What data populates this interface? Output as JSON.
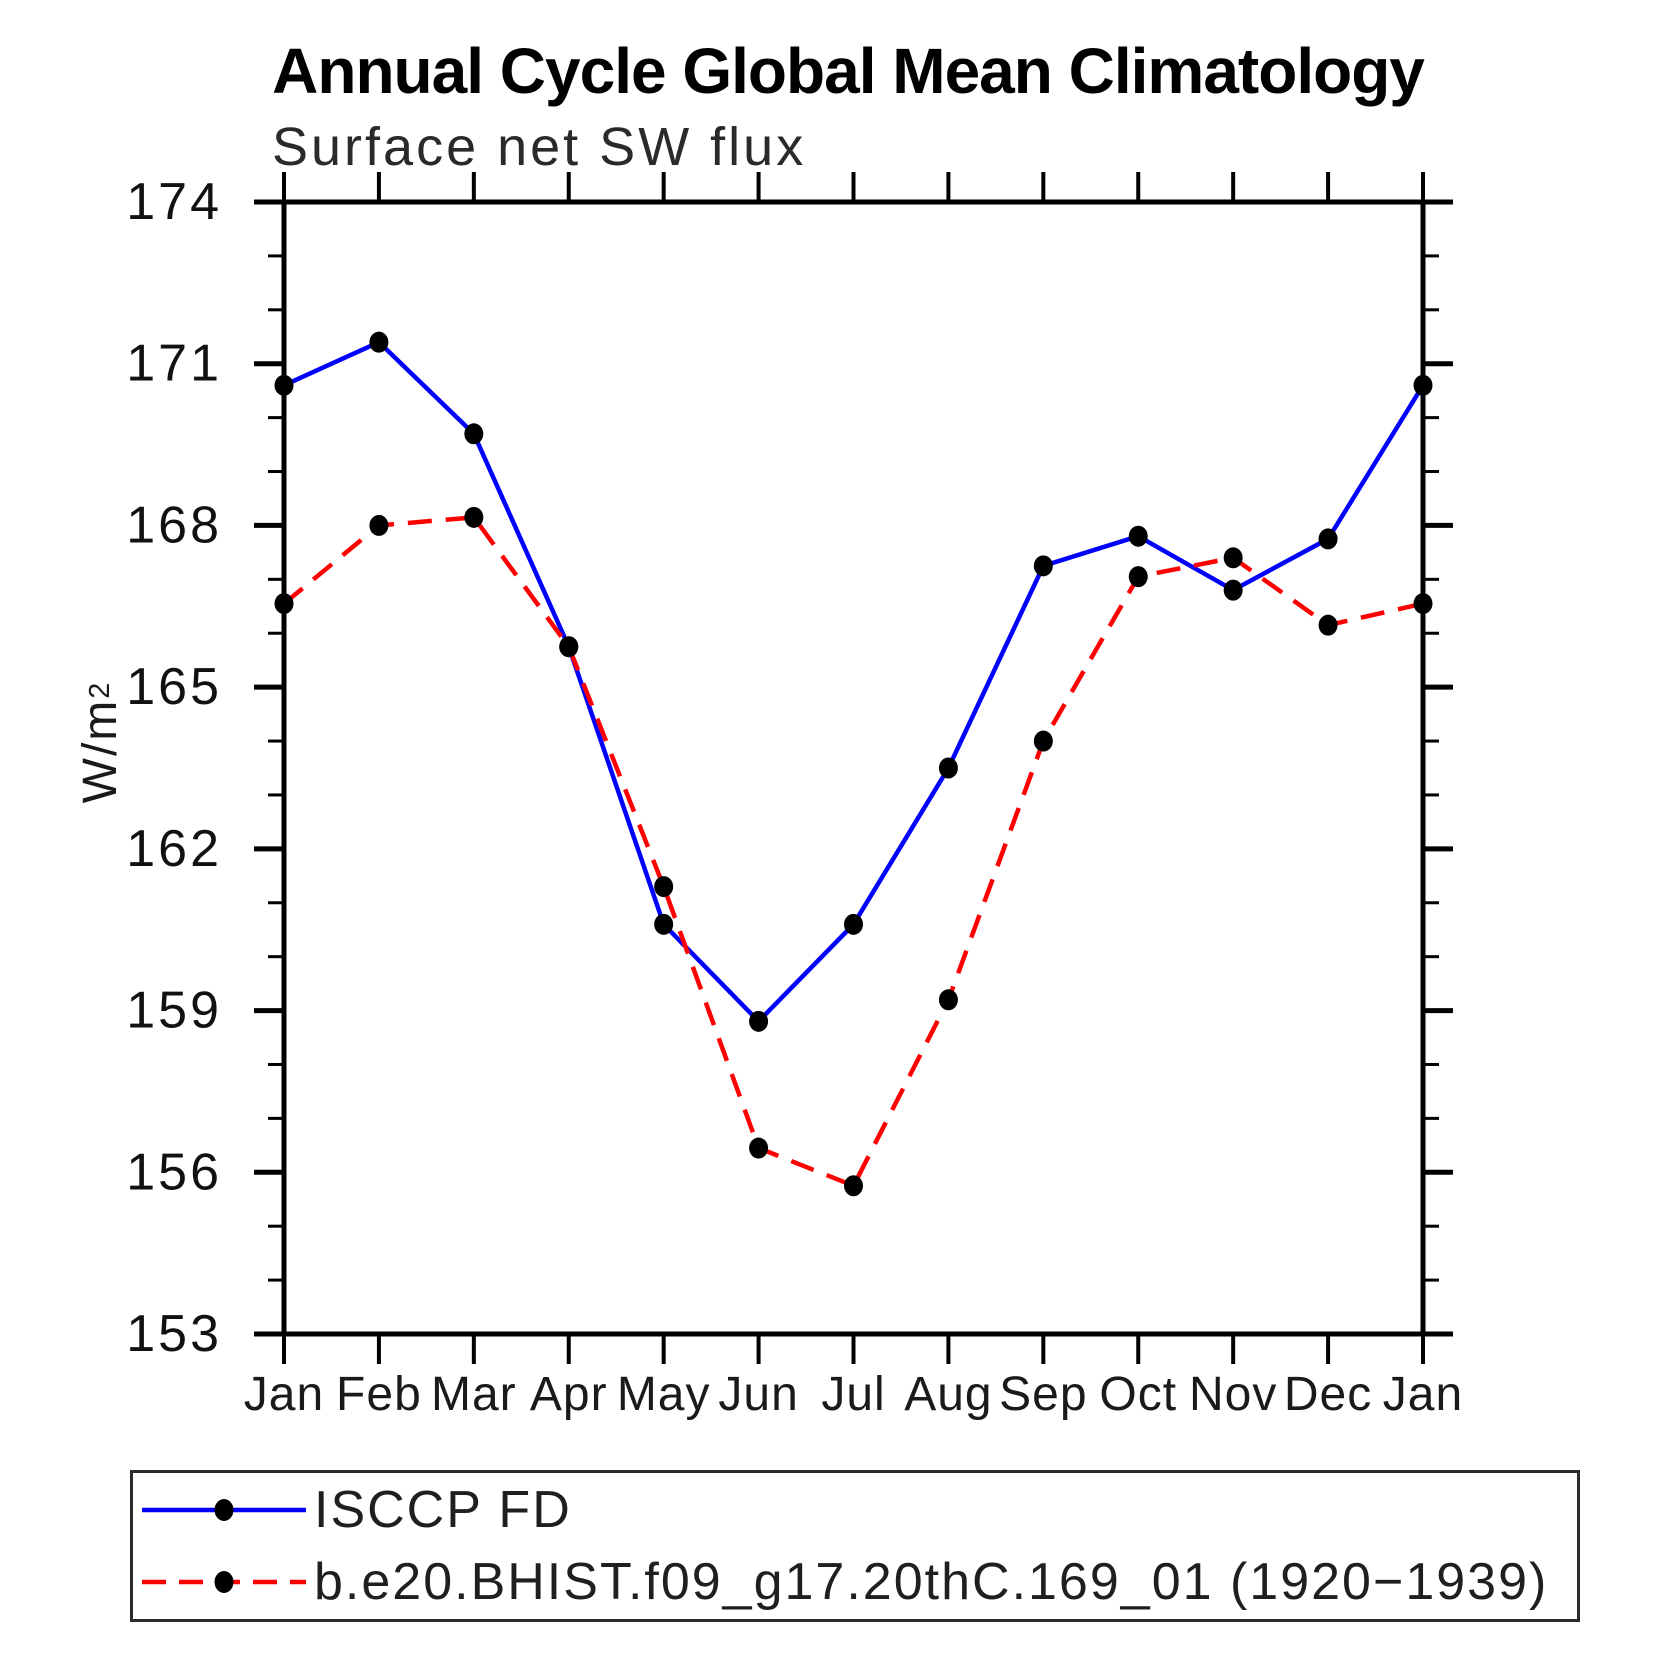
{
  "chart_data": {
    "type": "line",
    "title": "Annual Cycle Global Mean Climatology",
    "subtitle": "Surface net SW flux",
    "ylabel": "W/m^2",
    "ylabel_base": "W/m",
    "ylabel_exp": "2",
    "categories": [
      "Jan",
      "Feb",
      "Mar",
      "Apr",
      "May",
      "Jun",
      "Jul",
      "Aug",
      "Sep",
      "Oct",
      "Nov",
      "Dec",
      "Jan"
    ],
    "ylim": [
      153,
      174
    ],
    "ytick_major_step": 3,
    "ytick_minor_step": 1,
    "ytick_labels": [
      "153",
      "156",
      "159",
      "162",
      "165",
      "168",
      "171",
      "174"
    ],
    "grid": false,
    "legend_position": "bottom-left-box",
    "marker": "filled-circle",
    "marker_color": "#000000",
    "series": [
      {
        "name": "ISCCP FD",
        "color": "#0000ff",
        "style": "solid",
        "values": [
          170.6,
          171.4,
          169.7,
          165.75,
          160.6,
          158.8,
          160.6,
          163.5,
          167.25,
          167.8,
          166.8,
          167.75,
          170.6
        ]
      },
      {
        "name": "b.e20.BHIST.f09_g17.20thC.169_01 (1920−1939)",
        "color": "#ff0000",
        "style": "dashed",
        "values": [
          166.55,
          168.0,
          168.15,
          165.75,
          161.3,
          156.45,
          155.75,
          159.2,
          164.0,
          167.05,
          167.4,
          166.15,
          166.55
        ]
      }
    ]
  }
}
